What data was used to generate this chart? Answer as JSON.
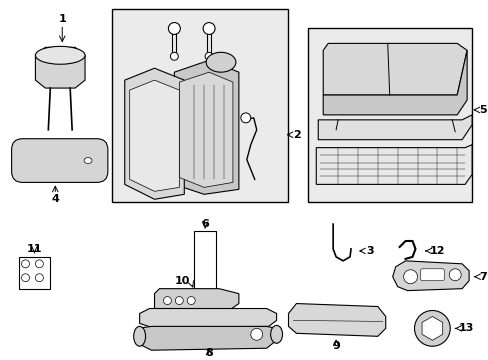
{
  "background_color": "#ffffff",
  "line_color": "#000000",
  "box_fill": "#ebebeb",
  "part_fill": "#e0e0e0",
  "part_fill2": "#d0d0d0"
}
